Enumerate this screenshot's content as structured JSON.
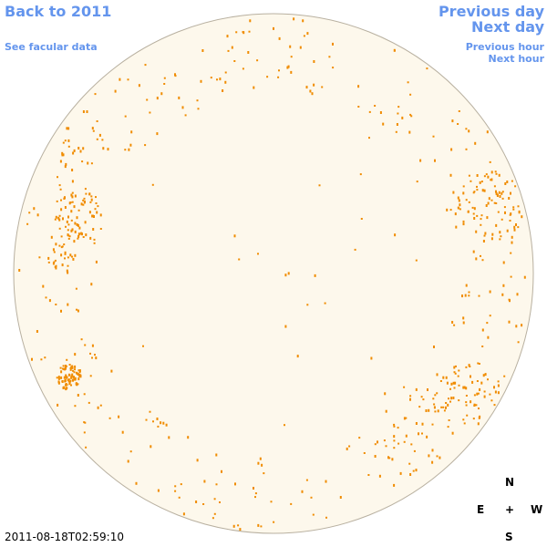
{
  "links": {
    "back": "Back to 2011",
    "facular": "See facular data",
    "previous_day": "Previous day",
    "next_day": "Next day",
    "previous_hour": "Previous hour",
    "next_hour": "Next hour"
  },
  "compass": {
    "north": "N",
    "east": "E",
    "center": "+",
    "west": "W",
    "south": "S"
  },
  "timestamp": "2011-08-18T02:59:10"
}
